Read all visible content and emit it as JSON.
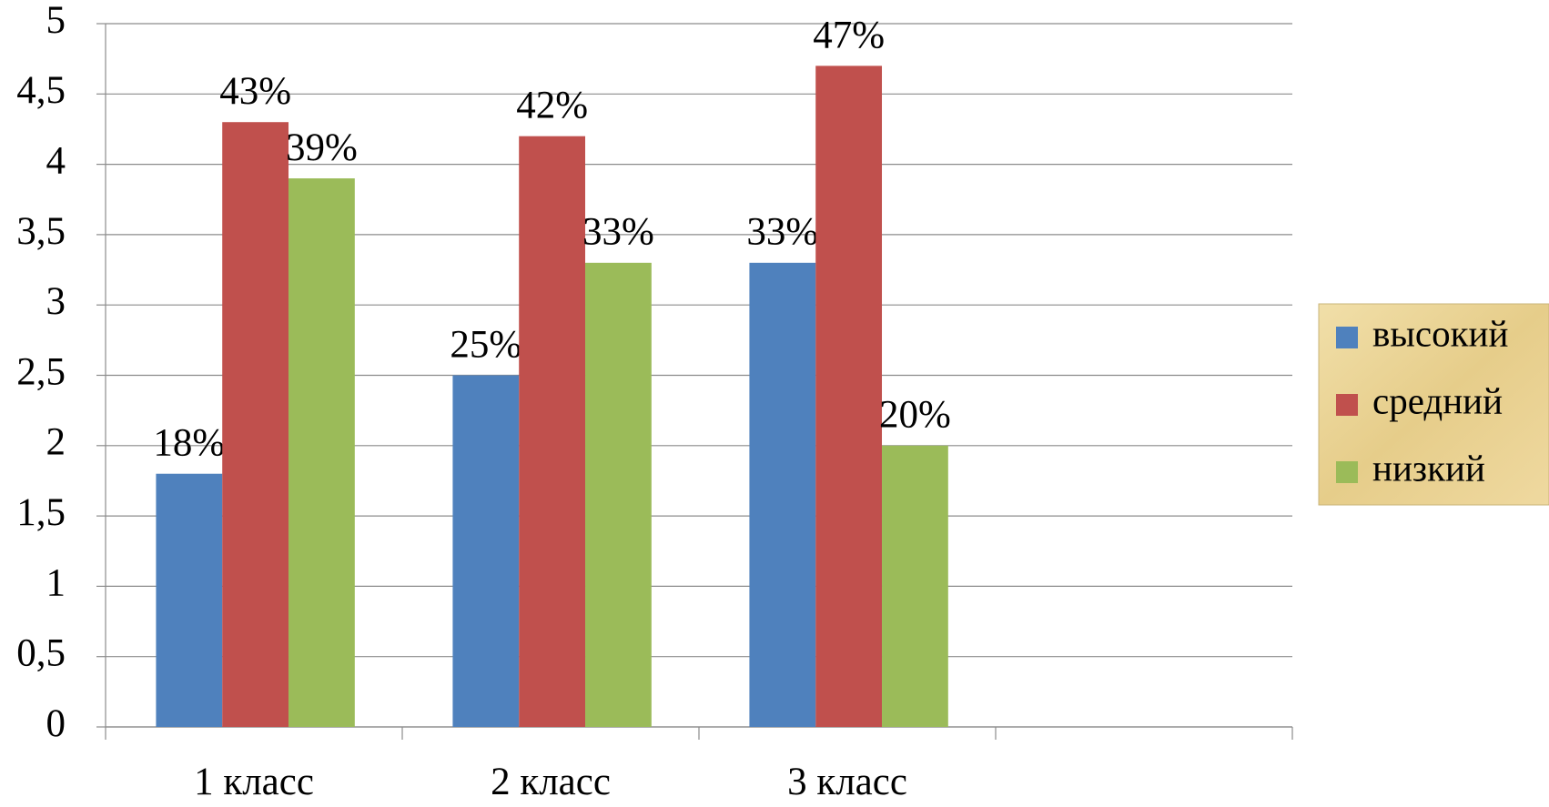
{
  "chart_data": {
    "type": "bar",
    "categories": [
      "1 класс",
      "2 класс",
      "3 класс",
      null
    ],
    "series": [
      {
        "name": "высокий",
        "color": "#4f81bd",
        "values": [
          1.8,
          2.5,
          3.3,
          null
        ],
        "value_labels": [
          "18%",
          "25%",
          "33%",
          null
        ]
      },
      {
        "name": "средний",
        "color": "#c0504d",
        "values": [
          4.3,
          4.2,
          4.7,
          null
        ],
        "value_labels": [
          "43%",
          "42%",
          "47%",
          null
        ]
      },
      {
        "name": "низкий",
        "color": "#9bbb59",
        "values": [
          3.9,
          3.3,
          2.0,
          null
        ],
        "value_labels": [
          "39%",
          "33%",
          "20%",
          null
        ]
      }
    ],
    "ylim": [
      0,
      5
    ],
    "yticks": [
      0,
      {
        "value": 0.5,
        "label": "0,5"
      },
      1,
      {
        "value": 1.5,
        "label": "1,5"
      },
      2,
      {
        "value": 2.5,
        "label": "2,5"
      },
      3,
      {
        "value": 3.5,
        "label": "3,5"
      },
      4,
      {
        "value": 4.5,
        "label": "4,5"
      },
      5
    ],
    "grid": true,
    "legend": "right"
  }
}
